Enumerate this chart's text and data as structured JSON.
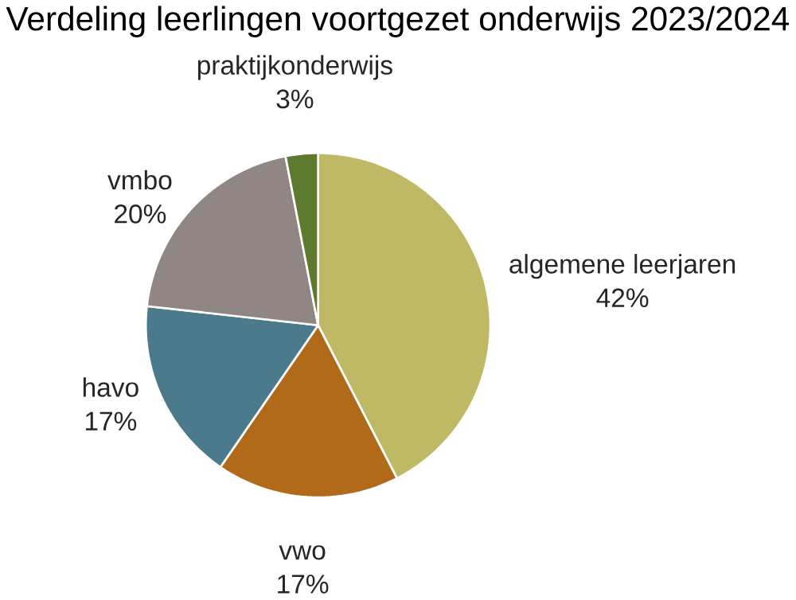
{
  "chart_data": {
    "type": "pie",
    "title": "Verdeling leerlingen voortgezet onderwijs 2023/2024",
    "categories": [
      "algemene leerjaren",
      "vwo",
      "havo",
      "vmbo",
      "praktijkonderwijs"
    ],
    "values": [
      42,
      17,
      17,
      20,
      3
    ],
    "value_labels": [
      "42%",
      "17%",
      "17%",
      "20%",
      "3%"
    ],
    "colors": [
      "#bfb865",
      "#b06a1a",
      "#4a7a8c",
      "#908784",
      "#5e7a2e"
    ]
  }
}
